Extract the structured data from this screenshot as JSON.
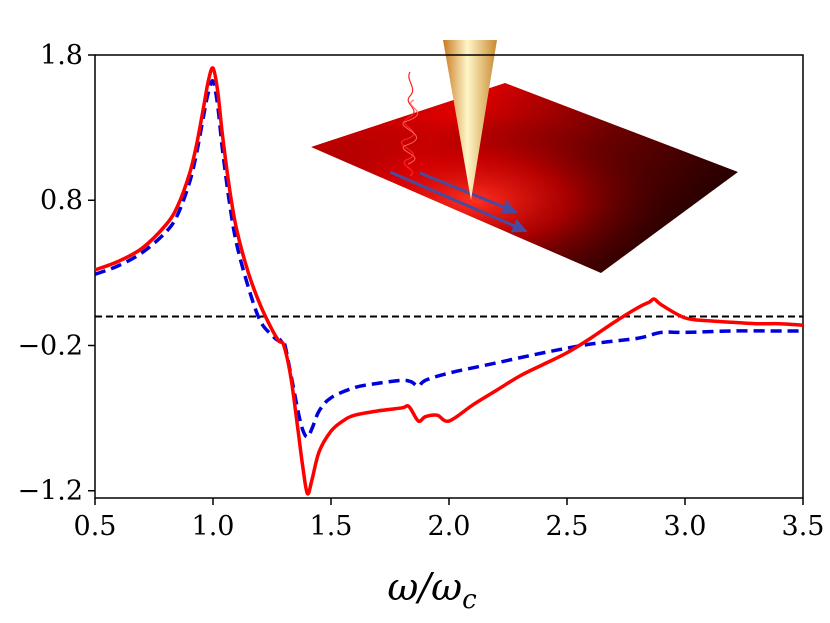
{
  "chart_data": {
    "type": "line",
    "title": "",
    "xlabel": "ω/ωc",
    "xlabel_main": "ω/ω",
    "xlabel_sub": "c",
    "ylabel": "",
    "xlim": [
      0.5,
      3.5
    ],
    "ylim": [
      -1.25,
      1.8
    ],
    "x_ticks": [
      0.5,
      1.0,
      1.5,
      2.0,
      2.5,
      3.0,
      3.5
    ],
    "x_tick_labels": [
      "0.5",
      "1.0",
      "1.5",
      "2.0",
      "2.5",
      "3.0",
      "3.5"
    ],
    "y_ticks": [
      1.8,
      0.8,
      -0.2,
      -1.2
    ],
    "y_tick_labels": [
      "1.8",
      "0.8",
      "−0.2",
      "−1.2"
    ],
    "reference_line": {
      "y": 0,
      "style": "dashed",
      "color": "#000000"
    },
    "colors": {
      "series_solid": "#ff0000",
      "series_dashed": "#0000dd",
      "reference": "#000000"
    },
    "series": [
      {
        "name": "solid",
        "style": "solid",
        "color": "#ff0000",
        "x": [
          0.5,
          0.6,
          0.7,
          0.8,
          0.85,
          0.9,
          0.93,
          0.96,
          0.98,
          1.0,
          1.02,
          1.04,
          1.07,
          1.1,
          1.15,
          1.2,
          1.25,
          1.28,
          1.3,
          1.33,
          1.36,
          1.38,
          1.4,
          1.42,
          1.45,
          1.5,
          1.55,
          1.6,
          1.7,
          1.8,
          1.83,
          1.87,
          1.9,
          1.95,
          2.0,
          2.1,
          2.2,
          2.3,
          2.4,
          2.5,
          2.6,
          2.7,
          2.8,
          2.85,
          2.87,
          2.9,
          3.0,
          3.1,
          3.2,
          3.3,
          3.4,
          3.5
        ],
        "y": [
          0.32,
          0.38,
          0.47,
          0.63,
          0.76,
          0.98,
          1.18,
          1.44,
          1.62,
          1.71,
          1.55,
          1.25,
          0.88,
          0.6,
          0.3,
          0.08,
          -0.09,
          -0.17,
          -0.2,
          -0.42,
          -0.78,
          -1.03,
          -1.22,
          -1.12,
          -0.93,
          -0.79,
          -0.72,
          -0.68,
          -0.65,
          -0.63,
          -0.62,
          -0.72,
          -0.69,
          -0.68,
          -0.72,
          -0.61,
          -0.51,
          -0.41,
          -0.33,
          -0.25,
          -0.15,
          -0.04,
          0.06,
          0.1,
          0.12,
          0.08,
          -0.01,
          -0.03,
          -0.04,
          -0.05,
          -0.05,
          -0.06
        ]
      },
      {
        "name": "dashed",
        "style": "dashed",
        "color": "#0000dd",
        "x": [
          0.5,
          0.6,
          0.7,
          0.8,
          0.85,
          0.9,
          0.93,
          0.96,
          0.98,
          1.0,
          1.02,
          1.04,
          1.07,
          1.1,
          1.15,
          1.2,
          1.25,
          1.28,
          1.3,
          1.33,
          1.36,
          1.38,
          1.4,
          1.42,
          1.45,
          1.5,
          1.6,
          1.7,
          1.8,
          1.84,
          1.87,
          1.9,
          2.0,
          2.2,
          2.4,
          2.6,
          2.8,
          2.9,
          3.0,
          3.2,
          3.4,
          3.5
        ],
        "y": [
          0.29,
          0.35,
          0.44,
          0.58,
          0.7,
          0.92,
          1.12,
          1.38,
          1.54,
          1.62,
          1.45,
          1.15,
          0.78,
          0.5,
          0.2,
          -0.03,
          -0.13,
          -0.17,
          -0.17,
          -0.4,
          -0.65,
          -0.78,
          -0.83,
          -0.77,
          -0.65,
          -0.56,
          -0.49,
          -0.46,
          -0.44,
          -0.45,
          -0.48,
          -0.44,
          -0.39,
          -0.32,
          -0.25,
          -0.19,
          -0.15,
          -0.11,
          -0.11,
          -0.1,
          -0.1,
          -0.1
        ]
      }
    ]
  }
}
